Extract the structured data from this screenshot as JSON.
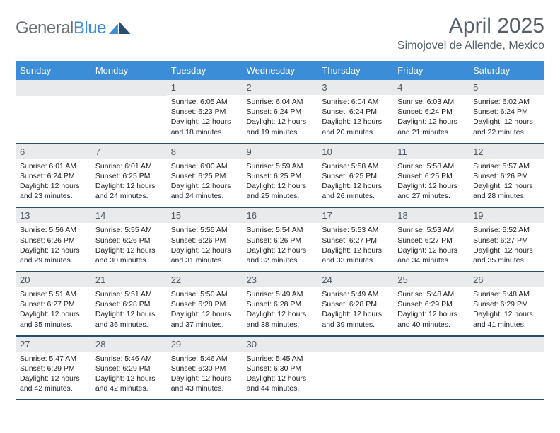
{
  "brand": {
    "word1": "General",
    "word2": "Blue"
  },
  "title": "April 2025",
  "location": "Simojovel de Allende, Mexico",
  "colors": {
    "header_bg": "#3a8dd6",
    "header_fg": "#ffffff",
    "daynum_bg": "#e8eaec",
    "daynum_fg": "#4b5866",
    "rule": "#284d6e",
    "title_fg": "#555f69",
    "body_fg": "#222222",
    "logo_gray": "#6a6f73",
    "logo_blue": "#3a8dd6"
  },
  "weekdays": [
    "Sunday",
    "Monday",
    "Tuesday",
    "Wednesday",
    "Thursday",
    "Friday",
    "Saturday"
  ],
  "weeks": [
    [
      null,
      null,
      {
        "n": "1",
        "sunrise": "6:05 AM",
        "sunset": "6:23 PM",
        "day_h": "12",
        "day_m": "18"
      },
      {
        "n": "2",
        "sunrise": "6:04 AM",
        "sunset": "6:24 PM",
        "day_h": "12",
        "day_m": "19"
      },
      {
        "n": "3",
        "sunrise": "6:04 AM",
        "sunset": "6:24 PM",
        "day_h": "12",
        "day_m": "20"
      },
      {
        "n": "4",
        "sunrise": "6:03 AM",
        "sunset": "6:24 PM",
        "day_h": "12",
        "day_m": "21"
      },
      {
        "n": "5",
        "sunrise": "6:02 AM",
        "sunset": "6:24 PM",
        "day_h": "12",
        "day_m": "22"
      }
    ],
    [
      {
        "n": "6",
        "sunrise": "6:01 AM",
        "sunset": "6:24 PM",
        "day_h": "12",
        "day_m": "23"
      },
      {
        "n": "7",
        "sunrise": "6:01 AM",
        "sunset": "6:25 PM",
        "day_h": "12",
        "day_m": "24"
      },
      {
        "n": "8",
        "sunrise": "6:00 AM",
        "sunset": "6:25 PM",
        "day_h": "12",
        "day_m": "24"
      },
      {
        "n": "9",
        "sunrise": "5:59 AM",
        "sunset": "6:25 PM",
        "day_h": "12",
        "day_m": "25"
      },
      {
        "n": "10",
        "sunrise": "5:58 AM",
        "sunset": "6:25 PM",
        "day_h": "12",
        "day_m": "26"
      },
      {
        "n": "11",
        "sunrise": "5:58 AM",
        "sunset": "6:25 PM",
        "day_h": "12",
        "day_m": "27"
      },
      {
        "n": "12",
        "sunrise": "5:57 AM",
        "sunset": "6:26 PM",
        "day_h": "12",
        "day_m": "28"
      }
    ],
    [
      {
        "n": "13",
        "sunrise": "5:56 AM",
        "sunset": "6:26 PM",
        "day_h": "12",
        "day_m": "29"
      },
      {
        "n": "14",
        "sunrise": "5:55 AM",
        "sunset": "6:26 PM",
        "day_h": "12",
        "day_m": "30"
      },
      {
        "n": "15",
        "sunrise": "5:55 AM",
        "sunset": "6:26 PM",
        "day_h": "12",
        "day_m": "31"
      },
      {
        "n": "16",
        "sunrise": "5:54 AM",
        "sunset": "6:26 PM",
        "day_h": "12",
        "day_m": "32"
      },
      {
        "n": "17",
        "sunrise": "5:53 AM",
        "sunset": "6:27 PM",
        "day_h": "12",
        "day_m": "33"
      },
      {
        "n": "18",
        "sunrise": "5:53 AM",
        "sunset": "6:27 PM",
        "day_h": "12",
        "day_m": "34"
      },
      {
        "n": "19",
        "sunrise": "5:52 AM",
        "sunset": "6:27 PM",
        "day_h": "12",
        "day_m": "35"
      }
    ],
    [
      {
        "n": "20",
        "sunrise": "5:51 AM",
        "sunset": "6:27 PM",
        "day_h": "12",
        "day_m": "35"
      },
      {
        "n": "21",
        "sunrise": "5:51 AM",
        "sunset": "6:28 PM",
        "day_h": "12",
        "day_m": "36"
      },
      {
        "n": "22",
        "sunrise": "5:50 AM",
        "sunset": "6:28 PM",
        "day_h": "12",
        "day_m": "37"
      },
      {
        "n": "23",
        "sunrise": "5:49 AM",
        "sunset": "6:28 PM",
        "day_h": "12",
        "day_m": "38"
      },
      {
        "n": "24",
        "sunrise": "5:49 AM",
        "sunset": "6:28 PM",
        "day_h": "12",
        "day_m": "39"
      },
      {
        "n": "25",
        "sunrise": "5:48 AM",
        "sunset": "6:29 PM",
        "day_h": "12",
        "day_m": "40"
      },
      {
        "n": "26",
        "sunrise": "5:48 AM",
        "sunset": "6:29 PM",
        "day_h": "12",
        "day_m": "41"
      }
    ],
    [
      {
        "n": "27",
        "sunrise": "5:47 AM",
        "sunset": "6:29 PM",
        "day_h": "12",
        "day_m": "42"
      },
      {
        "n": "28",
        "sunrise": "5:46 AM",
        "sunset": "6:29 PM",
        "day_h": "12",
        "day_m": "42"
      },
      {
        "n": "29",
        "sunrise": "5:46 AM",
        "sunset": "6:30 PM",
        "day_h": "12",
        "day_m": "43"
      },
      {
        "n": "30",
        "sunrise": "5:45 AM",
        "sunset": "6:30 PM",
        "day_h": "12",
        "day_m": "44"
      },
      null,
      null,
      null
    ]
  ],
  "labels": {
    "sunrise": "Sunrise: ",
    "sunset": "Sunset: ",
    "daylight1": "Daylight: ",
    "hours_word": " hours",
    "and_word": "and ",
    "minutes_word": " minutes."
  }
}
